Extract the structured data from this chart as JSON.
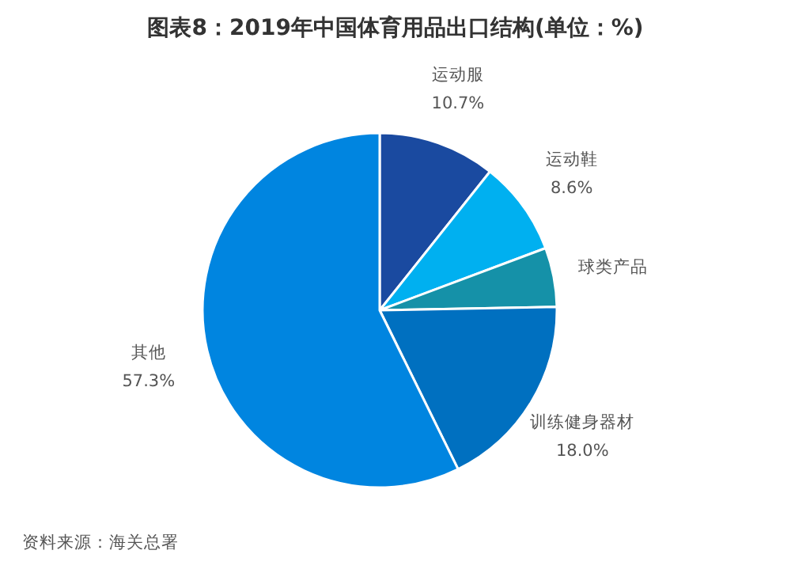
{
  "chart_data": {
    "type": "pie",
    "title": "图表8：2019年中国体育用品出口结构(单位：%)",
    "categories": [
      "运动服",
      "运动鞋",
      "球类产品",
      "训练健身器材",
      "其他"
    ],
    "values": [
      10.7,
      8.6,
      5.4,
      18.0,
      57.3
    ],
    "value_labels": [
      "10.7%",
      "8.6%",
      null,
      "18.0%",
      "57.3%"
    ],
    "colors": [
      "#1a4aa0",
      "#00b0f0",
      "#1591a8",
      "#0070c0",
      "#0085e0"
    ],
    "annotations": [
      "资料来源：海关总署"
    ]
  }
}
